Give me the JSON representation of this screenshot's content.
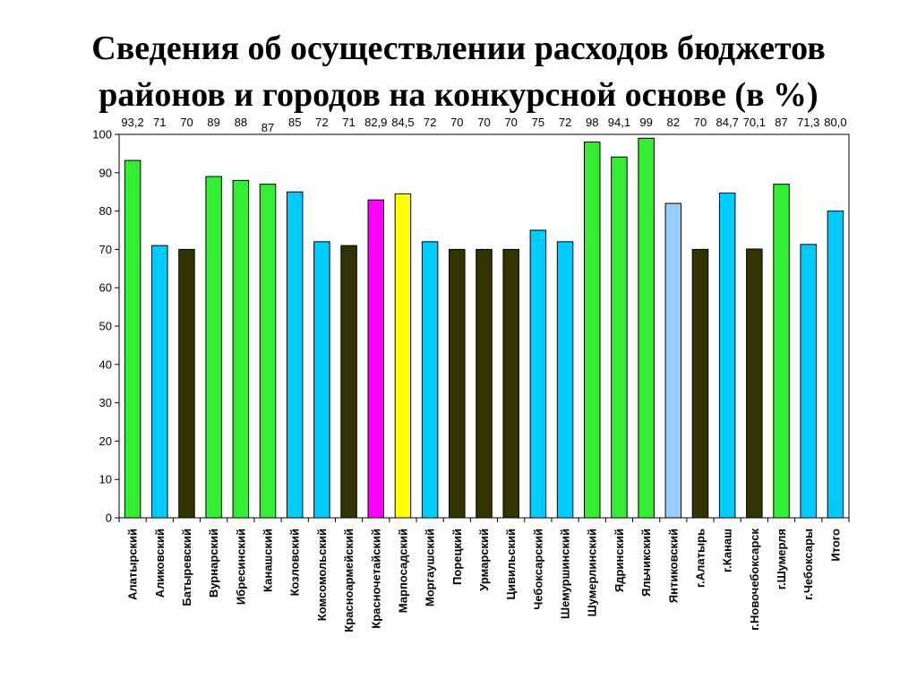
{
  "slide": {
    "title_line1": "Сведения об осуществлении расходов бюджетов",
    "title_line2": "районов и городов на конкурсной основе (в %)"
  },
  "colors": {
    "green": "#33ee33",
    "cyan": "#00ccff",
    "dark": "#333300",
    "magenta": "#ff00ff",
    "yellow": "#ffff00",
    "lightblue": "#99ccff"
  },
  "chart_data": {
    "type": "bar",
    "title": "",
    "xlabel": "",
    "ylabel": "",
    "ylim": [
      0,
      100
    ],
    "yticks": [
      0,
      10,
      20,
      30,
      40,
      50,
      60,
      70,
      80,
      90,
      100
    ],
    "grid": false,
    "legend": "none",
    "categories": [
      "Алатырский",
      "Аликовский",
      "Батыревский",
      "Вурнарский",
      "Ибресинский",
      "Канашский",
      "Козловский",
      "Комсомольский",
      "Красноармейский",
      "Красночетайский",
      "Марпосадский",
      "Моргаушский",
      "Порецкий",
      "Урмарский",
      "Цивильский",
      "Чебоксарский",
      "Шемуршинский",
      "Шумерлинский",
      "Ядринский",
      "Яльчикский",
      "Янтиковский",
      "г.Алатырь",
      "г.Канаш",
      "г.Новочебоксарск",
      "г.Шумерля",
      "г.Чебоксары",
      "Итого"
    ],
    "values": [
      93.2,
      71,
      70,
      89,
      88,
      87,
      85,
      72,
      71,
      82.9,
      84.5,
      72,
      70,
      70,
      70,
      75,
      72,
      98,
      94.1,
      99,
      82,
      70,
      84.7,
      70.1,
      87,
      71.3,
      80.0
    ],
    "value_labels": [
      "93,2",
      "71",
      "70",
      "89",
      "88",
      "87",
      "85",
      "72",
      "71",
      "82,9",
      "84,5",
      "72",
      "70",
      "70",
      "70",
      "75",
      "72",
      "98",
      "94,1",
      "99",
      "82",
      "70",
      "84,7",
      "70,1",
      "87",
      "71,3",
      "80,0"
    ],
    "bar_colors": [
      "green",
      "cyan",
      "dark",
      "green",
      "green",
      "green",
      "cyan",
      "cyan",
      "dark",
      "magenta",
      "yellow",
      "cyan",
      "dark",
      "dark",
      "dark",
      "cyan",
      "cyan",
      "green",
      "green",
      "green",
      "lightblue",
      "dark",
      "cyan",
      "dark",
      "green",
      "cyan",
      "cyan"
    ]
  }
}
